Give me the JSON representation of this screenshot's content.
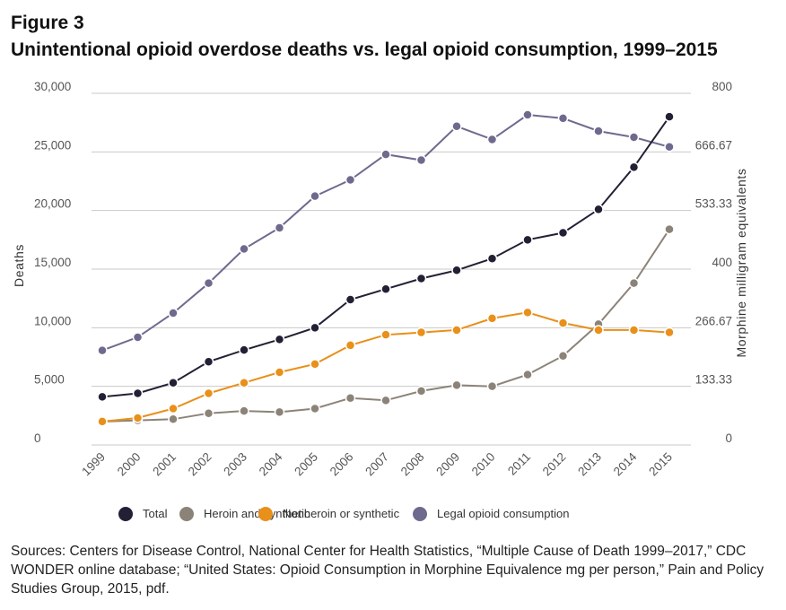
{
  "figure_label": "Figure 3",
  "title": "Unintentional opioid overdose deaths vs. legal opioid consumption, 1999–2015",
  "sources": "Sources: Centers for Disease Control, National Center for Health Statistics, “Multiple Cause of Death 1999–2017,” CDC WONDER online database; “United States: Opioid Consumption in Morphine Equivalence mg per person,” Pain and Policy Studies Group, 2015, pdf.",
  "chart_data": {
    "type": "line",
    "categories": [
      "1999",
      "2000",
      "2001",
      "2002",
      "2003",
      "2004",
      "2005",
      "2006",
      "2007",
      "2008",
      "2009",
      "2010",
      "2011",
      "2012",
      "2013",
      "2014",
      "2015"
    ],
    "ylabel": "Deaths",
    "ylabel_right": "Morphine milligram equivalents",
    "ylim": [
      0,
      30000
    ],
    "ylim_right": [
      0,
      800
    ],
    "yticks": [
      "0",
      "5,000",
      "10,000",
      "15,000",
      "20,000",
      "25,000",
      "30,000"
    ],
    "yticks_right": [
      "0",
      "133.33",
      "266.67",
      "400",
      "533.33",
      "666.67",
      "800"
    ],
    "grid": true,
    "legend_position": "bottom",
    "series": [
      {
        "name": "Total",
        "axis": "left",
        "color": "#231f35",
        "values": [
          4100,
          4400,
          5300,
          7100,
          8100,
          9000,
          10000,
          12400,
          13300,
          14200,
          14900,
          15900,
          17500,
          18100,
          20100,
          23700,
          28000
        ]
      },
      {
        "name": "Heroin and synthetic",
        "axis": "left",
        "color": "#8c8378",
        "values": [
          2000,
          2100,
          2200,
          2700,
          2900,
          2800,
          3100,
          4000,
          3800,
          4600,
          5100,
          5000,
          6000,
          7600,
          10300,
          13800,
          18400
        ]
      },
      {
        "name": "Nonheroin or synthetic",
        "axis": "left",
        "color": "#e8901a",
        "values": [
          2000,
          2300,
          3100,
          4400,
          5300,
          6200,
          6900,
          8500,
          9400,
          9600,
          9800,
          10800,
          11300,
          10400,
          9800,
          9800,
          9600
        ]
      },
      {
        "name": "Legal opioid consumption",
        "axis": "right",
        "color": "#6e6a8e",
        "values": [
          215,
          245,
          300,
          368,
          446,
          494,
          566,
          603,
          661,
          648,
          725,
          695,
          751,
          743,
          714,
          700,
          678
        ]
      }
    ]
  }
}
